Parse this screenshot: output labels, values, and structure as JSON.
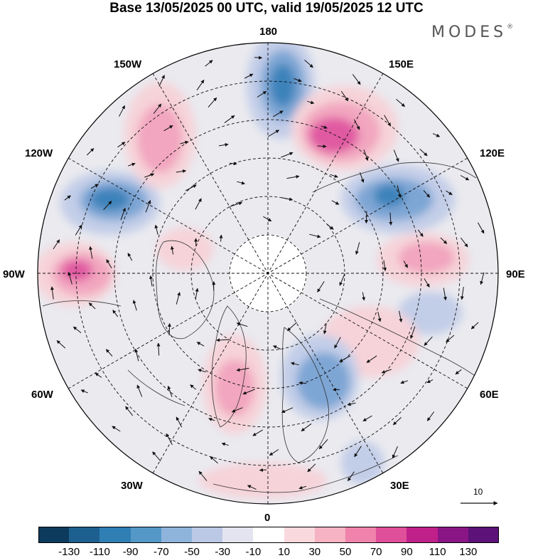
{
  "title": "Base 13/05/2025 00 UTC, valid 19/05/2025 12 UTC",
  "brand": "MODES",
  "brand_mark": "®",
  "longitude_labels": {
    "lon_180": "180",
    "lon_150e": "150E",
    "lon_120e": "120E",
    "lon_90e": "90E",
    "lon_60e": "60E",
    "lon_30e": "30E",
    "lon_0": "0",
    "lon_30w": "30W",
    "lon_60w": "60W",
    "lon_90w": "90W",
    "lon_120w": "120W",
    "lon_150w": "150W"
  },
  "vector_scale_label": "10",
  "colorbar": {
    "colors": [
      "#0d3b5e",
      "#1d5f8f",
      "#2f7fb5",
      "#5498c8",
      "#8fb4db",
      "#bcc9e6",
      "#e4e4f0",
      "#ffffff",
      "#f9d9dd",
      "#f5b3c3",
      "#ef83ab",
      "#e04f9a",
      "#c0208a",
      "#8a1686",
      "#5c1279"
    ],
    "ticks": [
      "-130",
      "-110",
      "-90",
      "-70",
      "-50",
      "-30",
      "-10",
      "10",
      "30",
      "50",
      "70",
      "90",
      "110",
      "130"
    ]
  },
  "anomaly_colors": {
    "blue_strong": "#3d83bb",
    "blue_mid": "#7ea6d4",
    "blue_light": "#c2cde8",
    "neutral": "#e9e9ee",
    "pink_light": "#f6d3d9",
    "pink_mid": "#f2a6bf",
    "pink_strong": "#e05aa2"
  }
}
